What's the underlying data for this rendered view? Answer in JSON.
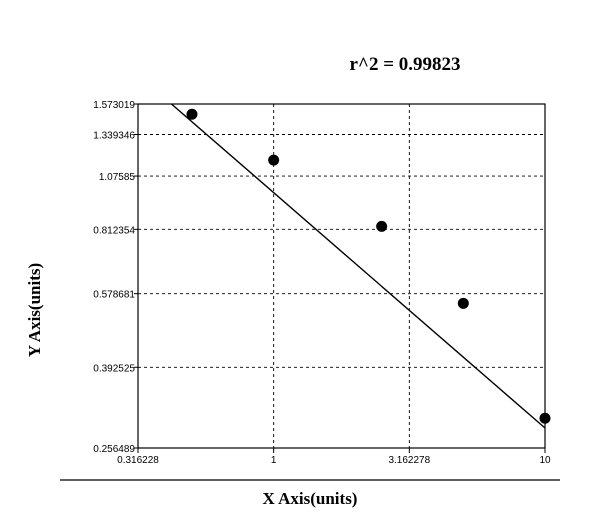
{
  "chart_data": {
    "type": "scatter",
    "annotation": "r^2  =  0.99823",
    "xlabel": "X Axis(units)",
    "ylabel": "Y Axis(units)",
    "x_scale": "log",
    "y_scale": "log",
    "xlim": [
      0.316228,
      10
    ],
    "ylim": [
      0.256489,
      1.573019
    ],
    "x_ticks": [
      {
        "value": 0.316228,
        "label": "0.316228"
      },
      {
        "value": 1,
        "label": "1"
      },
      {
        "value": 3.162278,
        "label": "3.162278"
      },
      {
        "value": 10,
        "label": "10"
      }
    ],
    "y_ticks": [
      {
        "value": 1.573019,
        "label": "1.573019"
      },
      {
        "value": 1.339346,
        "label": "1.339346"
      },
      {
        "value": 1.07585,
        "label": "1.07585"
      },
      {
        "value": 0.812354,
        "label": "0.812354"
      },
      {
        "value": 0.578681,
        "label": "0.578681"
      },
      {
        "value": 0.392525,
        "label": "0.392525"
      },
      {
        "value": 0.256489,
        "label": "0.256489"
      }
    ],
    "points": [
      {
        "x": 0.5,
        "y": 1.49
      },
      {
        "x": 1.0,
        "y": 1.17
      },
      {
        "x": 2.5,
        "y": 0.825
      },
      {
        "x": 5.0,
        "y": 0.55
      },
      {
        "x": 10.0,
        "y": 0.3
      }
    ],
    "fit_line": [
      {
        "x": 0.42,
        "y": 1.573019
      },
      {
        "x": 10.0,
        "y": 0.285
      }
    ],
    "grid": "dashed at inner ticks",
    "colors": {
      "line": "#000000",
      "marker": "#000000",
      "grid": "#000000",
      "background": "#ffffff"
    }
  }
}
